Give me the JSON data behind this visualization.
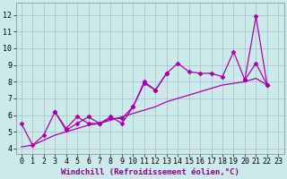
{
  "background_color": "#cceaea",
  "line_color": "#aa00aa",
  "marker": "D",
  "markersize": 2.5,
  "linewidth": 0.9,
  "xlabel": "Windchill (Refroidissement éolien,°C)",
  "xlabel_fontsize": 6.5,
  "tick_fontsize": 6,
  "xlim": [
    -0.5,
    23.5
  ],
  "ylim": [
    3.7,
    12.7
  ],
  "yticks": [
    4,
    5,
    6,
    7,
    8,
    9,
    10,
    11,
    12
  ],
  "xticks": [
    0,
    1,
    2,
    3,
    4,
    5,
    6,
    7,
    8,
    9,
    10,
    11,
    12,
    13,
    14,
    15,
    16,
    17,
    18,
    19,
    20,
    21,
    22,
    23
  ],
  "grid_color": "#aabbcc",
  "series": [
    {
      "x": [
        0,
        1,
        2,
        3,
        4,
        5,
        6,
        7,
        8,
        9,
        10,
        11,
        12,
        13,
        14,
        15,
        16,
        17,
        18,
        19,
        20,
        21,
        22
      ],
      "y": [
        5.5,
        4.2,
        4.8,
        6.2,
        5.2,
        5.9,
        5.5,
        5.5,
        5.8,
        5.8,
        6.5,
        7.9,
        7.5,
        8.5,
        9.1,
        8.6,
        8.5,
        8.5,
        8.3,
        9.8,
        8.1,
        9.1,
        7.8
      ],
      "markers": true
    },
    {
      "x": [
        3,
        4,
        5,
        6,
        7,
        8,
        9,
        10,
        11,
        12,
        13
      ],
      "y": [
        6.2,
        5.1,
        5.5,
        5.9,
        5.5,
        5.9,
        5.5,
        6.5,
        8.0,
        7.5,
        8.5
      ],
      "markers": true
    },
    {
      "x": [
        20,
        21,
        22
      ],
      "y": [
        8.1,
        11.9,
        7.8
      ],
      "markers": true
    },
    {
      "x": [
        0,
        1,
        2,
        3,
        4,
        5,
        6,
        7,
        8,
        9,
        10,
        11,
        12,
        13,
        14,
        15,
        16,
        17,
        18,
        19,
        20,
        21,
        22
      ],
      "y": [
        4.1,
        4.2,
        4.5,
        4.8,
        5.0,
        5.2,
        5.4,
        5.5,
        5.7,
        5.9,
        6.1,
        6.3,
        6.5,
        6.8,
        7.0,
        7.2,
        7.4,
        7.6,
        7.8,
        7.9,
        8.0,
        8.2,
        7.8
      ],
      "markers": false
    }
  ]
}
